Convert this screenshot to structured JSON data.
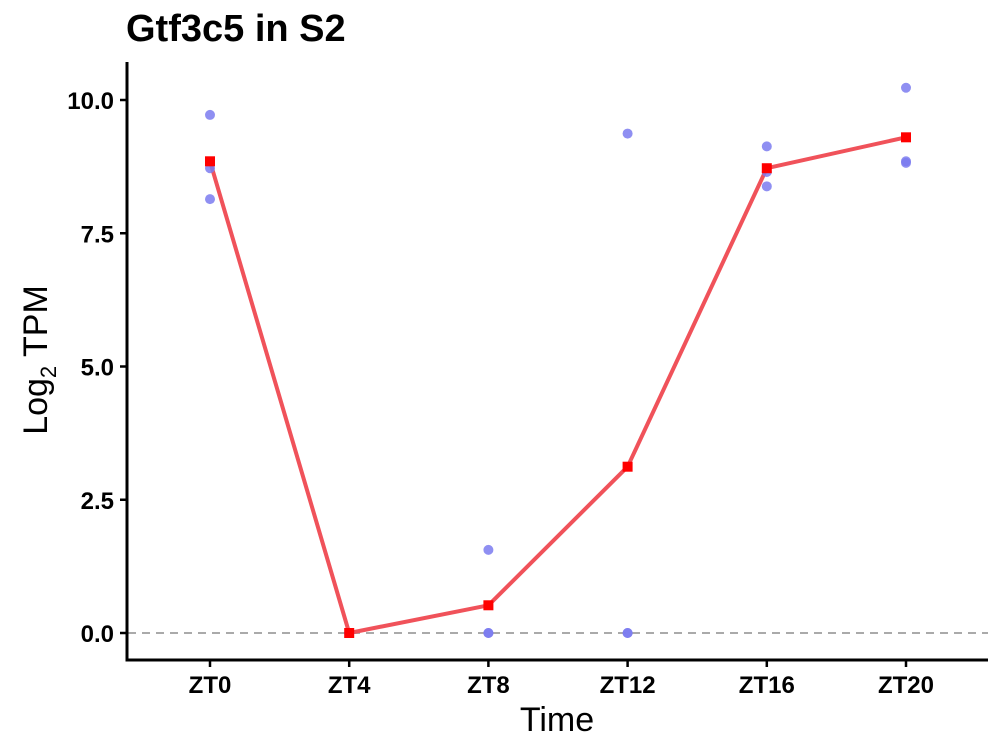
{
  "chart_data": {
    "type": "line",
    "title": "Gtf3c5 in S2",
    "xlabel": "Time",
    "ylabel": {
      "main": "Log",
      "subscript": "2",
      "suffix": "TPM"
    },
    "categories": [
      "ZT0",
      "ZT4",
      "ZT8",
      "ZT12",
      "ZT16",
      "ZT20"
    ],
    "ylim": [
      -0.5,
      10.7
    ],
    "yticks": [
      0.0,
      2.5,
      5.0,
      7.5,
      10.0
    ],
    "ytick_labels": [
      "0.0",
      "2.5",
      "5.0",
      "7.5",
      "10.0"
    ],
    "reference_line": {
      "y": 0,
      "style": "dashed",
      "color": "#aaaaaa"
    },
    "grid": false,
    "series": [
      {
        "type": "line",
        "color": "#f0525a",
        "marker_color": "#ff0000",
        "marker": "square",
        "values": [
          8.85,
          0.0,
          0.52,
          3.12,
          8.72,
          9.3
        ]
      },
      {
        "type": "scatter",
        "color": "#7b7bf0",
        "points": [
          {
            "x": "ZT0",
            "y": 9.72
          },
          {
            "x": "ZT0",
            "y": 8.72
          },
          {
            "x": "ZT0",
            "y": 8.14
          },
          {
            "x": "ZT4",
            "y": 0.0
          },
          {
            "x": "ZT4",
            "y": 0.0
          },
          {
            "x": "ZT4",
            "y": 0.0
          },
          {
            "x": "ZT8",
            "y": 1.56
          },
          {
            "x": "ZT8",
            "y": 0.0
          },
          {
            "x": "ZT8",
            "y": 0.0
          },
          {
            "x": "ZT12",
            "y": 9.37
          },
          {
            "x": "ZT12",
            "y": 0.0
          },
          {
            "x": "ZT12",
            "y": 0.0
          },
          {
            "x": "ZT16",
            "y": 9.13
          },
          {
            "x": "ZT16",
            "y": 8.65
          },
          {
            "x": "ZT16",
            "y": 8.38
          },
          {
            "x": "ZT20",
            "y": 10.23
          },
          {
            "x": "ZT20",
            "y": 8.85
          },
          {
            "x": "ZT20",
            "y": 8.82
          }
        ]
      }
    ]
  }
}
